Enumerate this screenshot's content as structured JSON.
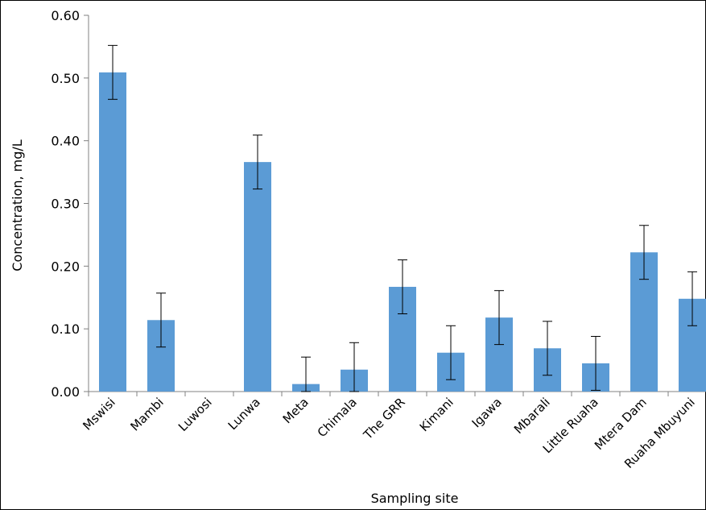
{
  "chart_data": {
    "type": "bar",
    "title": "",
    "xlabel": "Sampling site",
    "ylabel": "Concentration, mg/L",
    "ylim": [
      0,
      0.6
    ],
    "yticks": [
      "0.00",
      "0.10",
      "0.20",
      "0.30",
      "0.40",
      "0.50",
      "0.60"
    ],
    "grid": false,
    "legend": "none",
    "bar_color": "#5b9bd5",
    "categories": [
      "Mswisi",
      "Mambi",
      "Luwosi",
      "Lunwa",
      "Meta",
      "Chimala",
      "The GRR",
      "Kimani",
      "Igawa",
      "Mbarali",
      "Little Ruaha",
      "Mtera Dam",
      "Ruaha Mbuyuni"
    ],
    "values": [
      0.509,
      0.114,
      0.0,
      0.366,
      0.012,
      0.035,
      0.167,
      0.062,
      0.118,
      0.069,
      0.045,
      0.222,
      0.148
    ],
    "error": [
      0.043,
      0.043,
      0.0,
      0.043,
      0.043,
      0.043,
      0.043,
      0.043,
      0.043,
      0.043,
      0.043,
      0.043,
      0.043
    ]
  }
}
